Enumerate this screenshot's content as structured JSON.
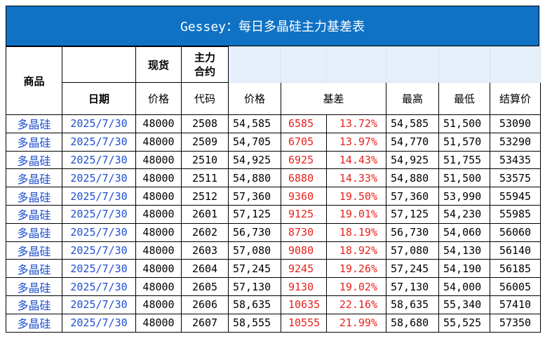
{
  "title": "Gessey：每日多晶硅主力基差表",
  "headers": {
    "commodity": "商品",
    "spot": "现货",
    "main_contract": "主力\n合约",
    "date": "日期",
    "spot_price": "价格",
    "code": "代码",
    "price": "价格",
    "basis": "基差",
    "high": "最高",
    "low": "最低",
    "settle": "结算价"
  },
  "rows": [
    {
      "name": "多晶硅",
      "date": "2025/7/30",
      "spot": "48000",
      "code": "2508",
      "price": "54,585",
      "basis": "6585",
      "pct": "13.72%",
      "high": "54,585",
      "low": "51,500",
      "settle": "53090"
    },
    {
      "name": "多晶硅",
      "date": "2025/7/30",
      "spot": "48000",
      "code": "2509",
      "price": "54,705",
      "basis": "6705",
      "pct": "13.97%",
      "high": "54,770",
      "low": "51,570",
      "settle": "53290"
    },
    {
      "name": "多晶硅",
      "date": "2025/7/30",
      "spot": "48000",
      "code": "2510",
      "price": "54,925",
      "basis": "6925",
      "pct": "14.43%",
      "high": "54,925",
      "low": "51,755",
      "settle": "53435"
    },
    {
      "name": "多晶硅",
      "date": "2025/7/30",
      "spot": "48000",
      "code": "2511",
      "price": "54,880",
      "basis": "6880",
      "pct": "14.33%",
      "high": "54,880",
      "low": "51,500",
      "settle": "53575"
    },
    {
      "name": "多晶硅",
      "date": "2025/7/30",
      "spot": "48000",
      "code": "2512",
      "price": "57,360",
      "basis": "9360",
      "pct": "19.50%",
      "high": "57,360",
      "low": "53,990",
      "settle": "55945"
    },
    {
      "name": "多晶硅",
      "date": "2025/7/30",
      "spot": "48000",
      "code": "2601",
      "price": "57,125",
      "basis": "9125",
      "pct": "19.01%",
      "high": "57,125",
      "low": "54,230",
      "settle": "55985"
    },
    {
      "name": "多晶硅",
      "date": "2025/7/30",
      "spot": "48000",
      "code": "2602",
      "price": "56,730",
      "basis": "8730",
      "pct": "18.19%",
      "high": "56,730",
      "low": "54,060",
      "settle": "56060"
    },
    {
      "name": "多晶硅",
      "date": "2025/7/30",
      "spot": "48000",
      "code": "2603",
      "price": "57,080",
      "basis": "9080",
      "pct": "18.92%",
      "high": "57,080",
      "low": "54,130",
      "settle": "56140"
    },
    {
      "name": "多晶硅",
      "date": "2025/7/30",
      "spot": "48000",
      "code": "2604",
      "price": "57,245",
      "basis": "9245",
      "pct": "19.26%",
      "high": "57,245",
      "low": "54,190",
      "settle": "56185"
    },
    {
      "name": "多晶硅",
      "date": "2025/7/30",
      "spot": "48000",
      "code": "2605",
      "price": "57,130",
      "basis": "9130",
      "pct": "19.02%",
      "high": "57,130",
      "low": "54,000",
      "settle": "56005"
    },
    {
      "name": "多晶硅",
      "date": "2025/7/30",
      "spot": "48000",
      "code": "2606",
      "price": "58,635",
      "basis": "10635",
      "pct": "22.16%",
      "high": "58,635",
      "low": "55,340",
      "settle": "57410"
    },
    {
      "name": "多晶硅",
      "date": "2025/7/30",
      "spot": "48000",
      "code": "2607",
      "price": "58,555",
      "basis": "10555",
      "pct": "21.99%",
      "high": "58,680",
      "low": "55,525",
      "settle": "57350"
    }
  ],
  "colors": {
    "title_bg": "#0f72c5",
    "title_text": "#ffffff",
    "header_light_bg": "#e6f0fb",
    "link_blue": "#1f4fd1",
    "basis_red": "#e8211c"
  }
}
